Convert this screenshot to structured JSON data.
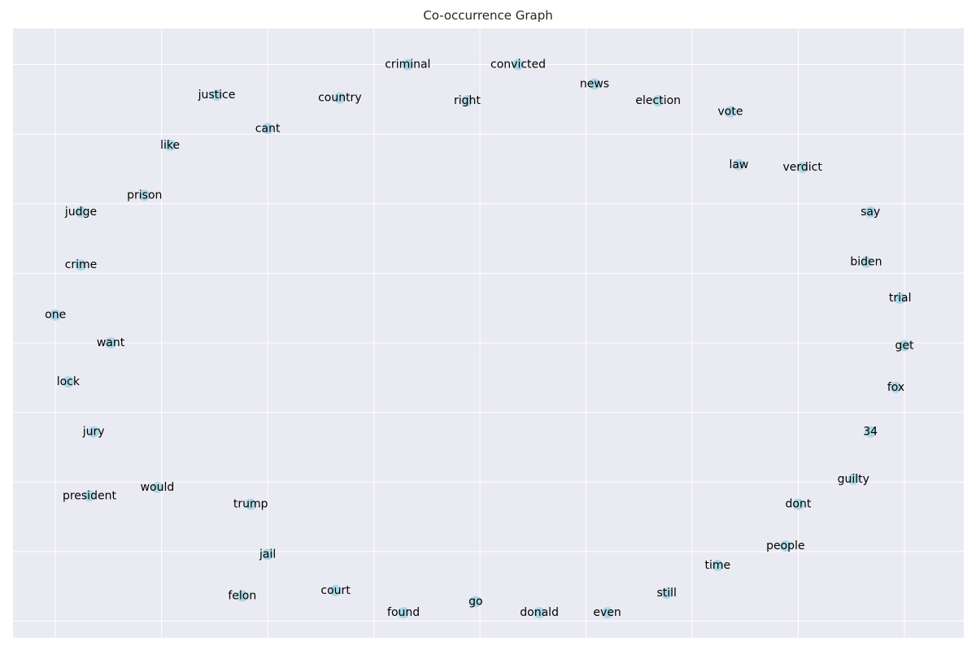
{
  "chart_data": {
    "type": "scatter",
    "title": "Co-occurrence Graph",
    "xlabel": "",
    "ylabel": "",
    "xlim": [
      -1.04,
      1.2
    ],
    "ylim": [
      -1.09,
      1.1
    ],
    "grid": true,
    "x_ticks": [
      -0.94,
      -0.69,
      -0.44,
      -0.19,
      0.06,
      0.31,
      0.56,
      0.81,
      1.06
    ],
    "y_ticks": [
      -1.03,
      -0.78,
      -0.53,
      -0.28,
      -0.03,
      0.22,
      0.47,
      0.72,
      0.97
    ],
    "colors": {
      "plot_bg": "#eaeaf2",
      "grid": "#ffffff",
      "node": "#add8e6",
      "label": "#000000"
    },
    "nodes": [
      {
        "label": "criminal",
        "x": -0.11,
        "y": 0.97
      },
      {
        "label": "convicted",
        "x": 0.15,
        "y": 0.97
      },
      {
        "label": "news",
        "x": 0.33,
        "y": 0.9
      },
      {
        "label": "justice",
        "x": -0.56,
        "y": 0.86
      },
      {
        "label": "country",
        "x": -0.27,
        "y": 0.85
      },
      {
        "label": "right",
        "x": 0.03,
        "y": 0.84
      },
      {
        "label": "election",
        "x": 0.48,
        "y": 0.84
      },
      {
        "label": "vote",
        "x": 0.65,
        "y": 0.8
      },
      {
        "label": "cant",
        "x": -0.44,
        "y": 0.74
      },
      {
        "label": "like",
        "x": -0.67,
        "y": 0.68
      },
      {
        "label": "law",
        "x": 0.67,
        "y": 0.61
      },
      {
        "label": "verdict",
        "x": 0.82,
        "y": 0.6
      },
      {
        "label": "prison",
        "x": -0.73,
        "y": 0.5
      },
      {
        "label": "judge",
        "x": -0.88,
        "y": 0.44
      },
      {
        "label": "say",
        "x": 0.98,
        "y": 0.44
      },
      {
        "label": "crime",
        "x": -0.88,
        "y": 0.25
      },
      {
        "label": "biden",
        "x": 0.97,
        "y": 0.26
      },
      {
        "label": "trial",
        "x": 1.05,
        "y": 0.13
      },
      {
        "label": "one",
        "x": -0.94,
        "y": 0.07
      },
      {
        "label": "want",
        "x": -0.81,
        "y": -0.03
      },
      {
        "label": "get",
        "x": 1.06,
        "y": -0.04
      },
      {
        "label": "lock",
        "x": -0.91,
        "y": -0.17
      },
      {
        "label": "fox",
        "x": 1.04,
        "y": -0.19
      },
      {
        "label": "jury",
        "x": -0.85,
        "y": -0.35
      },
      {
        "label": "34",
        "x": 0.98,
        "y": -0.35
      },
      {
        "label": "guilty",
        "x": 0.94,
        "y": -0.52
      },
      {
        "label": "would",
        "x": -0.7,
        "y": -0.55
      },
      {
        "label": "president",
        "x": -0.86,
        "y": -0.58
      },
      {
        "label": "trump",
        "x": -0.48,
        "y": -0.61
      },
      {
        "label": "dont",
        "x": 0.81,
        "y": -0.61
      },
      {
        "label": "people",
        "x": 0.78,
        "y": -0.76
      },
      {
        "label": "jail",
        "x": -0.44,
        "y": -0.79
      },
      {
        "label": "time",
        "x": 0.62,
        "y": -0.83
      },
      {
        "label": "court",
        "x": -0.28,
        "y": -0.92
      },
      {
        "label": "still",
        "x": 0.5,
        "y": -0.93
      },
      {
        "label": "felon",
        "x": -0.5,
        "y": -0.94
      },
      {
        "label": "go",
        "x": 0.05,
        "y": -0.96
      },
      {
        "label": "found",
        "x": -0.12,
        "y": -1.0
      },
      {
        "label": "donald",
        "x": 0.2,
        "y": -1.0
      },
      {
        "label": "even",
        "x": 0.36,
        "y": -1.0
      }
    ]
  }
}
